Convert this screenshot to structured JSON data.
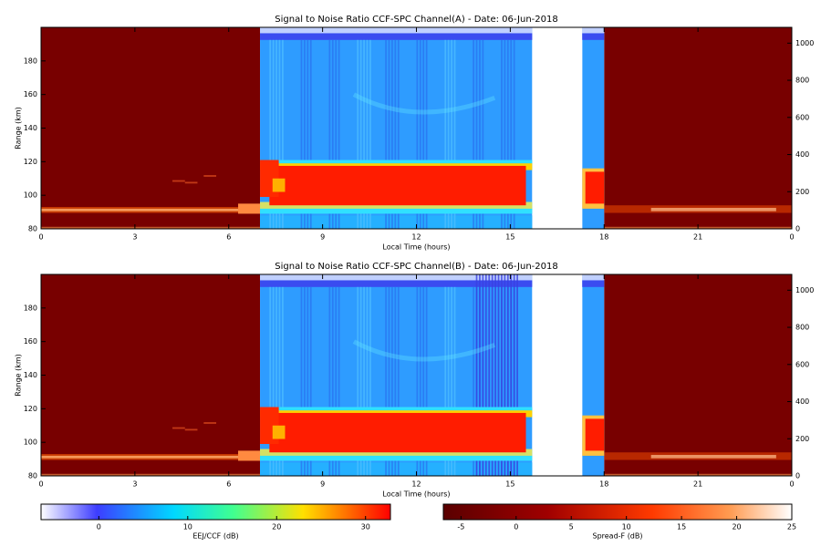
{
  "chart_data": [
    {
      "type": "heatmap",
      "title": "Signal to Noise Ratio CCF-SPC Channel(A) - Date: 06-Jun-2018",
      "xlabel": "Local Time (hours)",
      "ylabel": "Range (km)",
      "xlim": [
        0,
        24
      ],
      "xticks": [
        0,
        3,
        6,
        9,
        12,
        15,
        18,
        21,
        {
          "value": 24,
          "label": "0"
        }
      ],
      "ylim": [
        80,
        200
      ],
      "yticks": [
        80,
        100,
        120,
        140,
        160,
        180
      ],
      "y2lim": [
        0,
        1085
      ],
      "y2ticks": [
        0,
        200,
        400,
        600,
        800,
        1000
      ]
    },
    {
      "type": "heatmap",
      "title": "Signal to Noise Ratio CCF-SPC Channel(B) - Date: 06-Jun-2018",
      "xlabel": "Local Time (hours)",
      "ylabel": "Range (km)",
      "xlim": [
        0,
        24
      ],
      "xticks": [
        0,
        3,
        6,
        9,
        12,
        15,
        18,
        21,
        {
          "value": 24,
          "label": "0"
        }
      ],
      "ylim": [
        80,
        200
      ],
      "yticks": [
        80,
        100,
        120,
        140,
        160,
        180
      ],
      "y2lim": [
        0,
        1085
      ],
      "y2ticks": [
        0,
        200,
        400,
        600,
        800,
        1000
      ]
    }
  ],
  "colorbars": [
    {
      "label": "EEJ/CCF (dB)",
      "lim": [
        -6.5,
        32.8
      ],
      "ticks": [
        0,
        10,
        20,
        30
      ]
    },
    {
      "label": "Spread-F (dB)",
      "lim": [
        -6.6,
        25
      ],
      "ticks": [
        -5,
        0,
        5,
        10,
        15,
        20,
        25
      ]
    }
  ]
}
